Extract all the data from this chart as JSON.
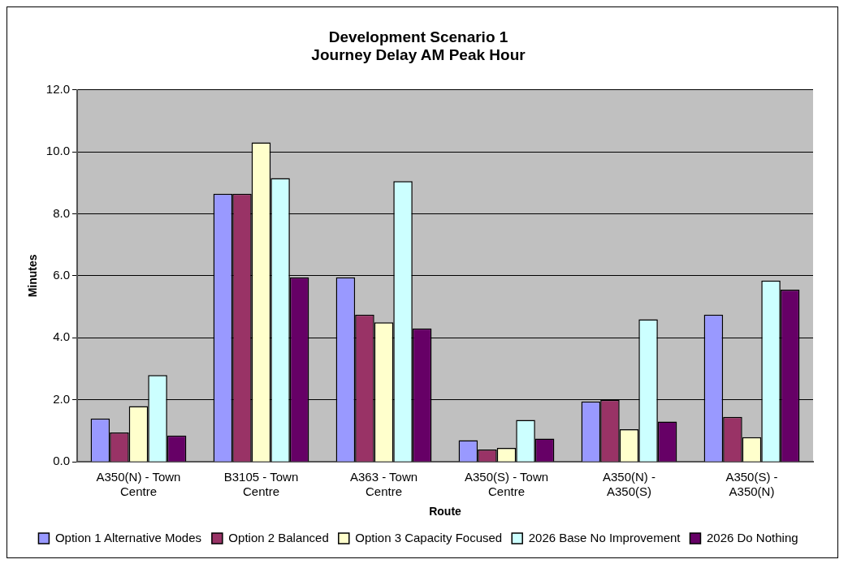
{
  "chart_data": {
    "type": "bar",
    "title": "Development Scenario 1\nJourney Delay AM Peak Hour",
    "xlabel": "Route",
    "ylabel": "Minutes",
    "categories": [
      "A350(N) - Town Centre",
      "B3105 - Town Centre",
      "A363 - Town Centre",
      "A350(S) - Town Centre",
      "A350(N) - A350(S)",
      "A350(S) - A350(N)"
    ],
    "series": [
      {
        "name": "Option 1 Alternative Modes",
        "color": "#9999ff",
        "values": [
          1.4,
          8.65,
          5.95,
          0.7,
          1.95,
          4.75
        ]
      },
      {
        "name": "Option 2 Balanced",
        "color": "#993366",
        "values": [
          0.95,
          8.65,
          4.75,
          0.4,
          2.0,
          1.45
        ]
      },
      {
        "name": "Option 3 Capacity Focused",
        "color": "#ffffcc",
        "values": [
          1.8,
          10.3,
          4.5,
          0.45,
          1.05,
          0.8
        ]
      },
      {
        "name": "2026 Base No Improvement",
        "color": "#ccffff",
        "values": [
          2.8,
          9.15,
          9.05,
          1.35,
          4.6,
          5.85
        ]
      },
      {
        "name": "2026 Do Nothing",
        "color": "#660066",
        "values": [
          0.85,
          5.95,
          4.3,
          0.75,
          1.3,
          5.55
        ]
      }
    ],
    "ylim": [
      0,
      12
    ],
    "yticks": [
      {
        "value": 0,
        "label": "0.0"
      },
      {
        "value": 2,
        "label": "2.0"
      },
      {
        "value": 4,
        "label": "4.0"
      },
      {
        "value": 6,
        "label": "6.0"
      },
      {
        "value": 8,
        "label": "8.0"
      },
      {
        "value": 10,
        "label": "10.0"
      },
      {
        "value": 12,
        "label": "12.0"
      }
    ],
    "grid": "y",
    "legend": "bottom"
  }
}
